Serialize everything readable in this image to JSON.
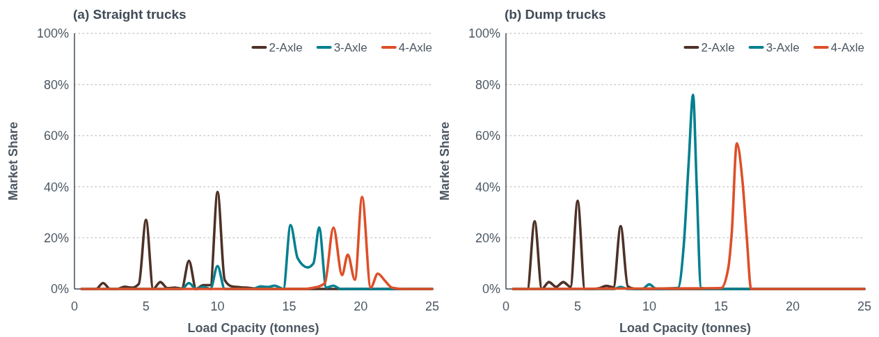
{
  "chart_data": [
    {
      "type": "line",
      "title": "(a) Straight trucks",
      "xlabel": "Load Cpacity (tonnes)",
      "ylabel": "Market Share",
      "xlim": [
        0,
        25
      ],
      "xticks": [
        0,
        5,
        10,
        15,
        20,
        25
      ],
      "ylim": [
        0,
        100
      ],
      "yticks": [
        {
          "value": 0,
          "label": "0%"
        },
        {
          "value": 20,
          "label": "20%"
        },
        {
          "value": 40,
          "label": "40%"
        },
        {
          "value": 60,
          "label": "60%"
        },
        {
          "value": 80,
          "label": "80%"
        },
        {
          "value": 100,
          "label": "100%"
        }
      ],
      "grid": "y",
      "legend": "top right",
      "series": [
        {
          "name": "2-Axle",
          "color": "#4d3127",
          "x": [
            0.5,
            1,
            1.5,
            2,
            2.5,
            3,
            3.5,
            4,
            4.5,
            5,
            5.5,
            6,
            6.5,
            7,
            7.5,
            8,
            8.5,
            9,
            9.5,
            10,
            10.5,
            11,
            12,
            13,
            25
          ],
          "values": [
            0,
            0,
            0,
            2.3,
            0,
            0,
            0.9,
            0.5,
            2,
            27,
            0,
            2.7,
            0.3,
            0.5,
            0.2,
            11,
            0,
            1.5,
            1.5,
            38,
            3.5,
            1,
            0.5,
            0,
            0
          ]
        },
        {
          "name": "3-Axle",
          "color": "#00808f",
          "x": [
            0.5,
            7.5,
            8,
            8.5,
            9,
            9.5,
            10,
            10.5,
            11,
            12.5,
            13,
            13.5,
            14,
            14.6,
            15.1,
            15.6,
            16.3,
            16.7,
            17.1,
            17.6,
            18.1,
            18.6,
            25
          ],
          "values": [
            0,
            0,
            2.3,
            0,
            0.9,
            0,
            9,
            0,
            0,
            0,
            1,
            0.8,
            1.3,
            0,
            25,
            12,
            8.4,
            10,
            24,
            0.5,
            1.3,
            0,
            0
          ]
        },
        {
          "name": "4-Axle",
          "color": "#dd4f28",
          "x": [
            0.5,
            15,
            16,
            16.7,
            17,
            17.5,
            18.1,
            18.7,
            19.1,
            19.6,
            20.1,
            20.7,
            21.2,
            21.7,
            22.2,
            23,
            25
          ],
          "values": [
            0,
            0,
            0,
            0.5,
            0.8,
            2.3,
            24,
            5.4,
            13.4,
            3.6,
            36,
            0.5,
            6,
            3.2,
            0.5,
            0,
            0
          ]
        }
      ]
    },
    {
      "type": "line",
      "title": "(b) Dump trucks",
      "xlabel": "Load Cpacity (tonnes)",
      "ylabel": "Market Share",
      "xlim": [
        0,
        25
      ],
      "xticks": [
        0,
        5,
        10,
        15,
        20,
        25
      ],
      "ylim": [
        0,
        100
      ],
      "yticks": [
        {
          "value": 0,
          "label": "0%"
        },
        {
          "value": 20,
          "label": "20%"
        },
        {
          "value": 40,
          "label": "40%"
        },
        {
          "value": 60,
          "label": "60%"
        },
        {
          "value": 80,
          "label": "80%"
        },
        {
          "value": 100,
          "label": "100%"
        }
      ],
      "grid": "y",
      "legend": "top right",
      "series": [
        {
          "name": "2-Axle",
          "color": "#4d3127",
          "x": [
            0.5,
            1,
            1.5,
            2,
            2.5,
            3,
            3.5,
            4,
            4.5,
            5,
            5.5,
            6,
            6.5,
            7,
            7.5,
            8,
            8.5,
            9,
            25
          ],
          "values": [
            0,
            0,
            0,
            26.5,
            0,
            2.7,
            0.8,
            2.7,
            0.8,
            34.5,
            0,
            0,
            0.3,
            1.2,
            0.7,
            24.6,
            1,
            0,
            0
          ]
        },
        {
          "name": "3-Axle",
          "color": "#00808f",
          "x": [
            0.5,
            7.5,
            8,
            8.5,
            9.5,
            10,
            10.5,
            11.5,
            12,
            12.4,
            12.75,
            13.05,
            13.3,
            13.6,
            14,
            25
          ],
          "values": [
            0,
            0,
            0.8,
            0,
            0,
            1.8,
            0,
            0.2,
            0.4,
            17,
            50,
            76,
            41,
            0.4,
            0,
            0
          ]
        },
        {
          "name": "4-Axle",
          "color": "#dd4f28",
          "x": [
            0.5,
            15,
            15.5,
            15.75,
            16.1,
            16.5,
            16.8,
            17.1,
            25
          ],
          "values": [
            0,
            0.3,
            8,
            22,
            57,
            42,
            20,
            0,
            0
          ]
        }
      ]
    }
  ]
}
